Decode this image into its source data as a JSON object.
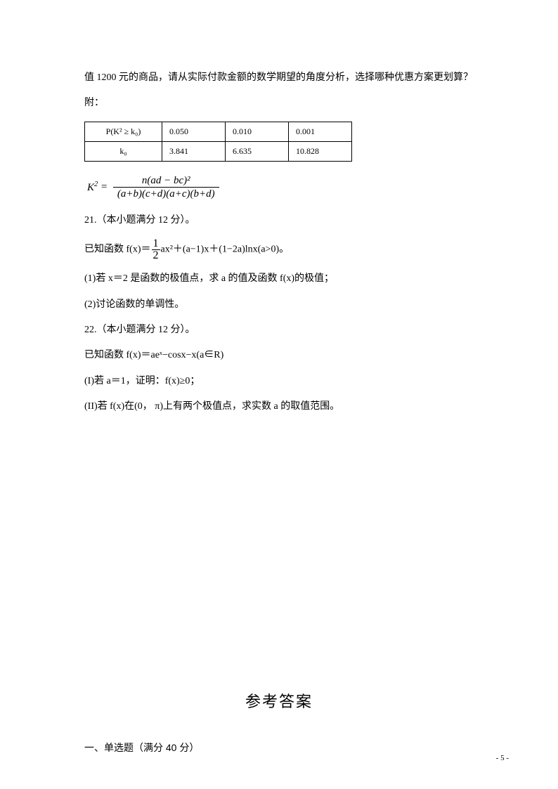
{
  "intro_line": "值 1200 元的商品，请从实际付款金额的数学期望的角度分析，选择哪种优惠方案更划算？",
  "attach_label": "附：",
  "table": {
    "rows": [
      [
        "P(K² ≥ k₀)",
        "0.050",
        "0.010",
        "0.001"
      ],
      [
        "k₀",
        "3.841",
        "6.635",
        "10.828"
      ]
    ],
    "border_color": "#000000",
    "font_size": 12
  },
  "k2_formula": {
    "left": "K",
    "sup": "2",
    "eq": " = ",
    "numerator": "n(ad − bc)²",
    "denominator": "(a+b)(c+d)(a+c)(b+d)"
  },
  "q21": {
    "header": "21.（本小题满分 12 分）。",
    "fn_pre": "已知函数 f(x)＝",
    "frac_num": "1",
    "frac_den": "2",
    "fn_post": "ax²＋(a−1)x＋(1−2a)lnx(a>0)。",
    "p1": "(1)若 x＝2 是函数的极值点，求 a 的值及函数 f(x)的极值；",
    "p2": "(2)讨论函数的单调性。"
  },
  "q22": {
    "header": "22.（本小题满分 12 分）。",
    "fn": "已知函数 f(x)＝aeˣ−cosx−x(a∈R)",
    "p1": "(I)若 a＝1，证明：f(x)≥0；",
    "p2": "(II)若 f(x)在(0， π)上有两个极值点，求实数 a 的取值范围。"
  },
  "answers_title": "参考答案",
  "section1": "一、单选题（满分 40 分）",
  "page_number": "- 5 -",
  "colors": {
    "text": "#000000",
    "background": "#ffffff"
  }
}
